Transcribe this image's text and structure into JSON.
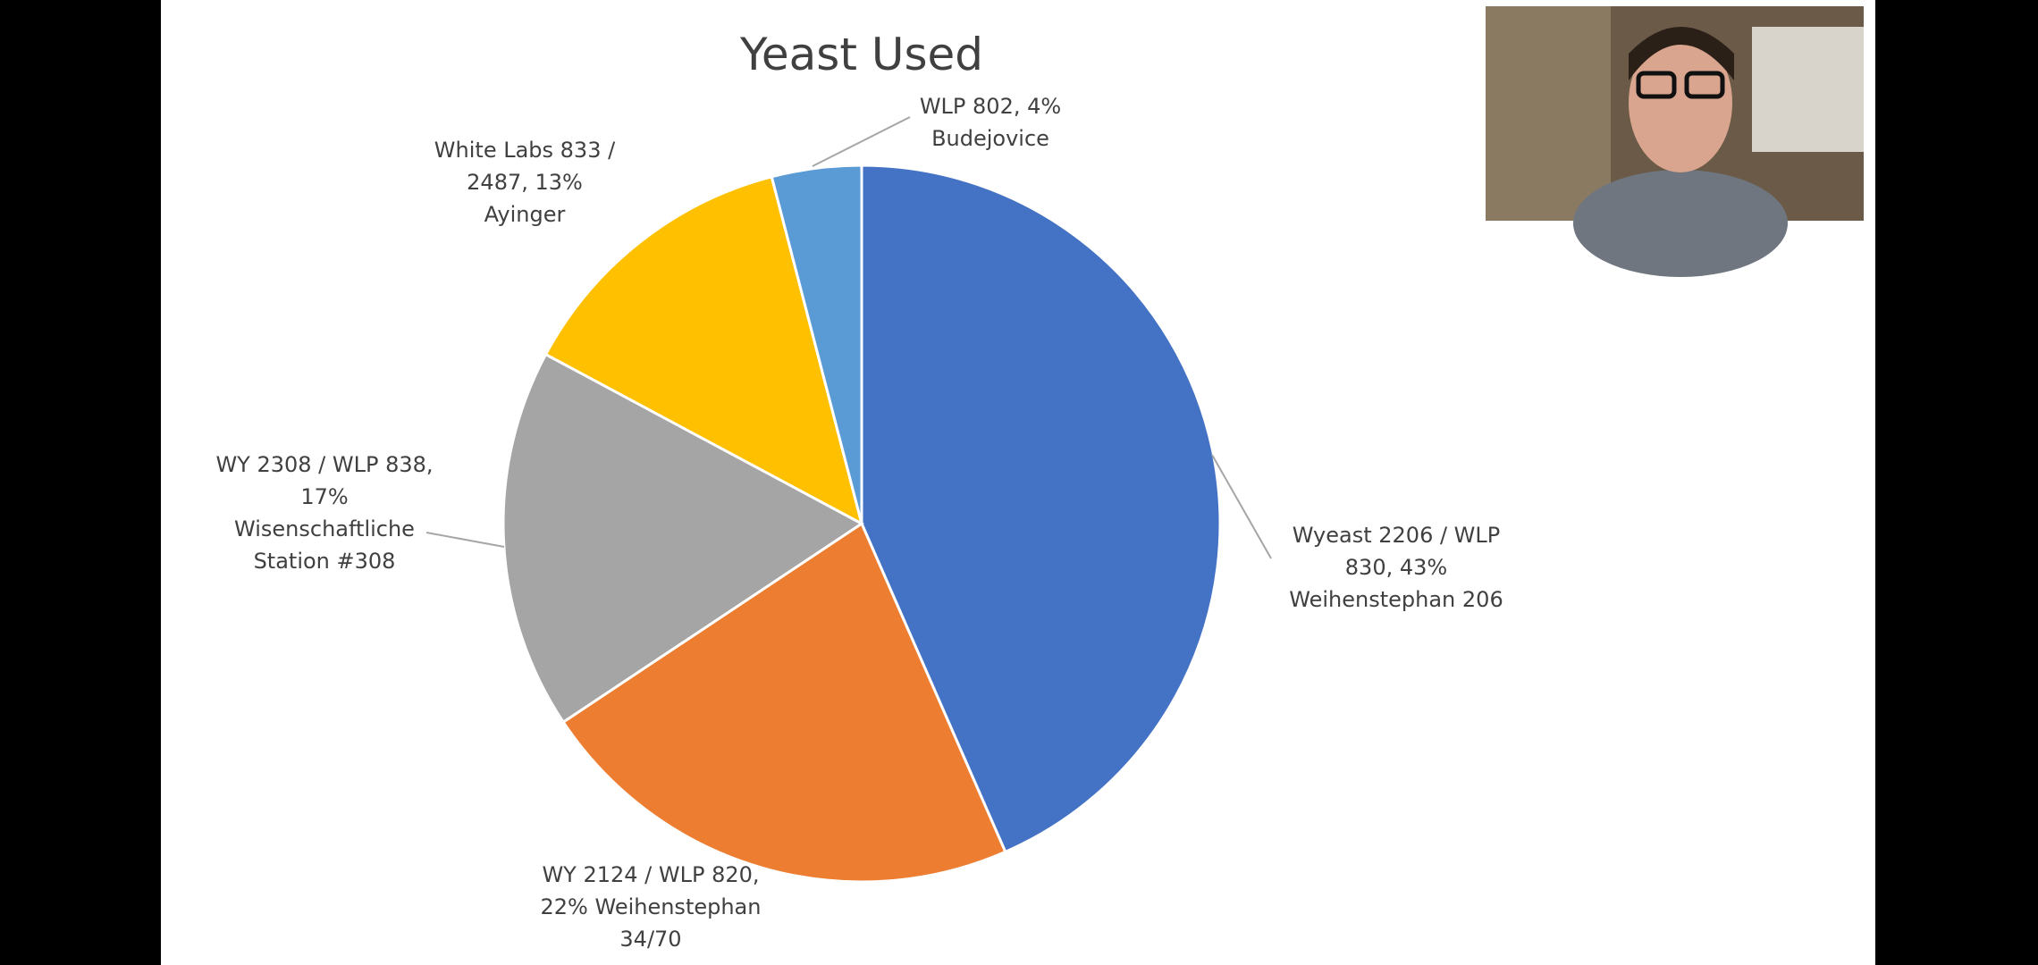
{
  "chart_data": {
    "type": "pie",
    "title": "Yeast Used",
    "values": [
      43,
      22,
      17,
      13,
      4
    ],
    "value_labels": [
      "Wyeast 2206 / WLP 830, 43% Weihenstephan 206",
      "WY 2124 / WLP 820, 22% Weihenstephan 34/70",
      "WY 2308 / WLP 838, 17% Wisenschaftliche Station #308",
      "White Labs 833 / 2487, 13% Ayinger",
      "WLP 802, 4% Budejovice"
    ],
    "colors": [
      "#4472c4",
      "#ed7d31",
      "#a5a5a5",
      "#ffc000",
      "#5b9bd5"
    ]
  }
}
